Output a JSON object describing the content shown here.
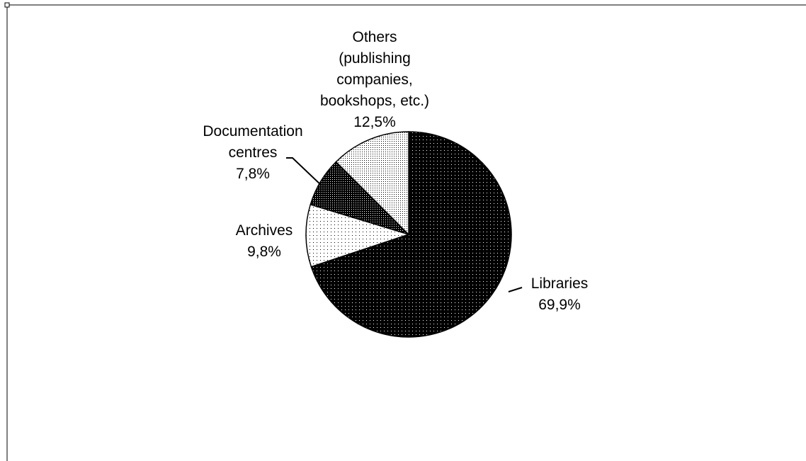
{
  "chart_data": {
    "type": "pie",
    "start": "12 o'clock",
    "direction": "clockwise",
    "slices": [
      {
        "name": "Libraries",
        "label_lines": [
          "Libraries",
          "69,9%"
        ],
        "value": 69.9,
        "pattern": "dark-dots"
      },
      {
        "name": "Archives",
        "label_lines": [
          "Archives",
          "9,8%"
        ],
        "value": 9.8,
        "pattern": "light-dots"
      },
      {
        "name": "Documentation centres",
        "label_lines": [
          "Documentation",
          "centres",
          "7,8%"
        ],
        "value": 7.8,
        "pattern": "dark-dense-dots"
      },
      {
        "name": "Others (publishing companies, bookshops, etc.)",
        "label_lines": [
          "Others",
          "(publishing",
          "companies,",
          "bookshops, etc.)",
          "12,5%"
        ],
        "value": 12.5,
        "pattern": "light-dense-dots"
      }
    ],
    "colors": {
      "dark": "#000000",
      "light": "#ffffff",
      "edge": "#000000"
    }
  }
}
